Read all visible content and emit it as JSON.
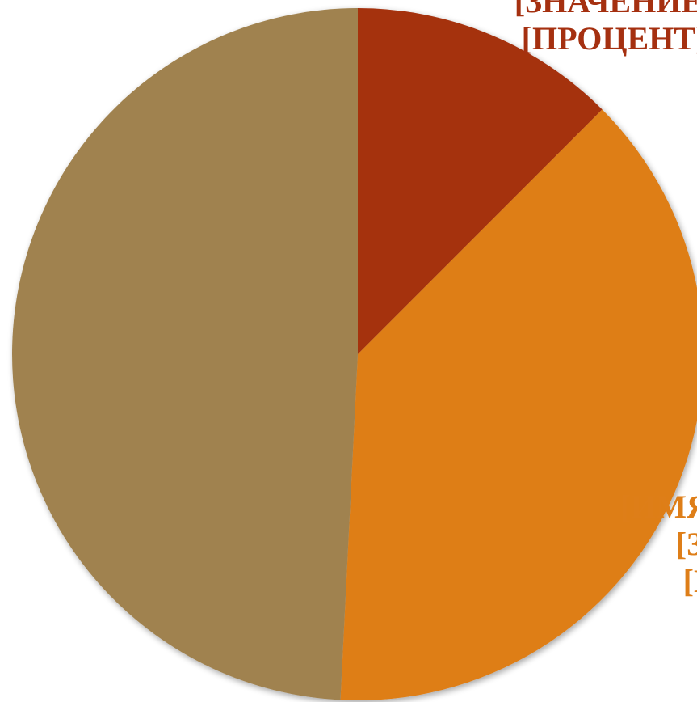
{
  "chart_data": {
    "type": "pie",
    "slices": [
      {
        "value": 12.5,
        "color": "#A53010",
        "label_color": "#A53010",
        "label_lines": [
          "[ЗНАЧЕНИЕ]",
          "[ПРОЦЕНТ]"
        ]
      },
      {
        "value": 38.3,
        "color": "#DE7E18",
        "label_color": "#DE7E18",
        "label_lines": [
          "[ИМЯ КАТЕГОРИИ]",
          "[ЗНАЧЕНИЕ]",
          "[ПРОЦЕНТ]"
        ]
      },
      {
        "value": 49.2,
        "color": "#A08250",
        "label_color": "#A08250",
        "label_lines": []
      }
    ],
    "start_angle_deg": 0,
    "direction": "clockwise",
    "title": "",
    "legend": "none"
  }
}
